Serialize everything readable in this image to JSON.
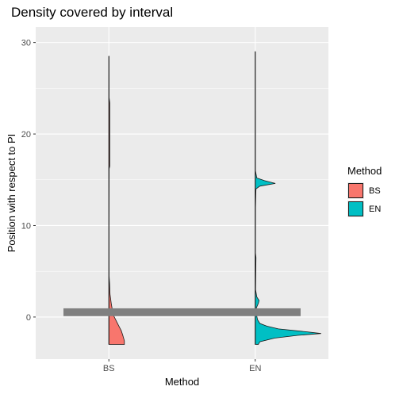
{
  "chart_data": {
    "type": "violin",
    "title": "Density covered by interval",
    "xlabel": "Method",
    "ylabel": "Position with respect to PI",
    "categories": [
      "BS",
      "EN"
    ],
    "ylim": [
      -4.6,
      31.7
    ],
    "yticks": [
      0,
      10,
      20,
      30
    ],
    "grid": true,
    "legend": {
      "title": "Method",
      "position": "right",
      "entries": [
        {
          "label": "BS",
          "color": "#F8766D"
        },
        {
          "label": "EN",
          "color": "#00BFC4"
        }
      ]
    },
    "interval_band": {
      "y_low": 0.1,
      "y_high": 0.95,
      "color": "#808080"
    },
    "series": [
      {
        "name": "BS",
        "color": "#F8766D",
        "min": -3.0,
        "max": 28.5,
        "density_profile": [
          [
            -3.0,
            0.2
          ],
          [
            -2.6,
            0.2
          ],
          [
            -2.0,
            0.18
          ],
          [
            -1.5,
            0.16
          ],
          [
            -1.0,
            0.13
          ],
          [
            -0.5,
            0.1
          ],
          [
            0.0,
            0.07
          ],
          [
            0.5,
            0.05
          ],
          [
            1.0,
            0.04
          ],
          [
            1.5,
            0.03
          ],
          [
            2.5,
            0.015
          ],
          [
            3.6,
            0.01
          ],
          [
            4.5,
            0.003
          ],
          [
            10.0,
            0.002
          ],
          [
            16.2,
            0.004
          ],
          [
            16.5,
            0.012
          ],
          [
            20.0,
            0.012
          ],
          [
            23.4,
            0.012
          ],
          [
            24.0,
            0.003
          ],
          [
            28.5,
            0.002
          ]
        ]
      },
      {
        "name": "EN",
        "color": "#00BFC4",
        "min": -3.0,
        "max": 29.0,
        "density_profile": [
          [
            -3.0,
            0.04
          ],
          [
            -2.7,
            0.06
          ],
          [
            -2.3,
            0.25
          ],
          [
            -2.0,
            0.55
          ],
          [
            -1.8,
            0.85
          ],
          [
            -1.6,
            0.65
          ],
          [
            -1.3,
            0.3
          ],
          [
            -1.0,
            0.15
          ],
          [
            -0.7,
            0.06
          ],
          [
            -0.3,
            0.03
          ],
          [
            0.5,
            0.01
          ],
          [
            1.0,
            0.015
          ],
          [
            1.5,
            0.04
          ],
          [
            1.8,
            0.05
          ],
          [
            2.2,
            0.02
          ],
          [
            3.0,
            0.005
          ],
          [
            6.5,
            0.01
          ],
          [
            7.0,
            0.003
          ],
          [
            12.0,
            0.004
          ],
          [
            14.0,
            0.01
          ],
          [
            14.3,
            0.06
          ],
          [
            14.6,
            0.26
          ],
          [
            14.9,
            0.12
          ],
          [
            15.2,
            0.02
          ],
          [
            16.0,
            0.003
          ],
          [
            29.0,
            0.002
          ]
        ]
      }
    ]
  }
}
